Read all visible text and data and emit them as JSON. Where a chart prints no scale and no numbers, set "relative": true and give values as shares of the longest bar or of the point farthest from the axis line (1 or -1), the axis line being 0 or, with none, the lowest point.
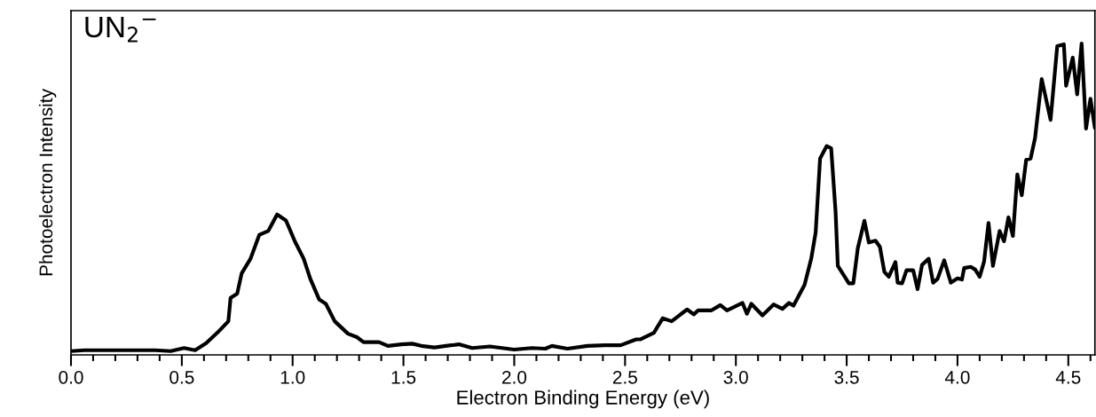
{
  "chart_data": {
    "type": "line",
    "title": "UN$_{2}$$^{−}$",
    "xlabel": "Electron Binding Energy (eV)",
    "ylabel": "Photoelectron Intensity",
    "relative": true,
    "tick_labels": "x",
    "grid": false,
    "marker": "none",
    "line_style": "solid",
    "xlim": [
      0,
      4.62
    ],
    "xticks": [
      {
        "value": 0,
        "label": "0.0"
      },
      {
        "value": 0.5,
        "label": "0.5"
      },
      {
        "value": 1,
        "label": "1.0"
      },
      {
        "value": 1.5,
        "label": "1.5"
      },
      {
        "value": 2,
        "label": "2.0"
      },
      {
        "value": 2.5,
        "label": "2.5"
      },
      {
        "value": 3,
        "label": "3.0"
      },
      {
        "value": 3.5,
        "label": "3.5"
      },
      {
        "value": 4,
        "label": "4.0"
      },
      {
        "value": 4.5,
        "label": "4.5"
      }
    ],
    "series": [
      {
        "color": "#000000",
        "x": [
          0.0,
          0.06,
          0.18,
          0.38,
          0.45,
          0.51,
          0.56,
          0.61,
          0.66,
          0.71,
          0.72,
          0.75,
          0.77,
          0.81,
          0.85,
          0.89,
          0.93,
          0.97,
          1.01,
          1.05,
          1.08,
          1.12,
          1.15,
          1.19,
          1.25,
          1.29,
          1.32,
          1.39,
          1.43,
          1.49,
          1.54,
          1.58,
          1.64,
          1.75,
          1.81,
          1.89,
          2.0,
          2.08,
          2.14,
          2.17,
          2.24,
          2.33,
          2.41,
          2.48,
          2.55,
          2.57,
          2.63,
          2.67,
          2.71,
          2.78,
          2.81,
          2.83,
          2.89,
          2.93,
          2.96,
          3.03,
          3.05,
          3.07,
          3.12,
          3.17,
          3.21,
          3.24,
          3.26,
          3.31,
          3.34,
          3.36,
          3.38,
          3.41,
          3.43,
          3.45,
          3.46,
          3.51,
          3.53,
          3.55,
          3.58,
          3.6,
          3.63,
          3.65,
          3.67,
          3.69,
          3.72,
          3.73,
          3.75,
          3.77,
          3.8,
          3.82,
          3.84,
          3.87,
          3.89,
          3.91,
          3.94,
          3.97,
          4.0,
          4.02,
          4.03,
          4.06,
          4.08,
          4.1,
          4.12,
          4.14,
          4.16,
          4.19,
          4.21,
          4.23,
          4.25,
          4.27,
          4.29,
          4.31,
          4.33,
          4.35,
          4.38,
          4.42,
          4.45,
          4.48,
          4.49,
          4.52,
          4.54,
          4.56,
          4.58,
          4.6,
          4.62
        ],
        "values": [
          0.012,
          0.015,
          0.015,
          0.015,
          0.012,
          0.022,
          0.015,
          0.038,
          0.071,
          0.108,
          0.183,
          0.197,
          0.262,
          0.309,
          0.386,
          0.398,
          0.451,
          0.432,
          0.365,
          0.309,
          0.244,
          0.178,
          0.164,
          0.108,
          0.068,
          0.057,
          0.041,
          0.041,
          0.029,
          0.034,
          0.036,
          0.029,
          0.024,
          0.034,
          0.022,
          0.027,
          0.017,
          0.022,
          0.02,
          0.029,
          0.02,
          0.029,
          0.031,
          0.031,
          0.05,
          0.05,
          0.071,
          0.118,
          0.108,
          0.146,
          0.13,
          0.143,
          0.143,
          0.16,
          0.143,
          0.167,
          0.132,
          0.164,
          0.127,
          0.162,
          0.148,
          0.167,
          0.158,
          0.225,
          0.309,
          0.393,
          0.631,
          0.671,
          0.664,
          0.459,
          0.286,
          0.23,
          0.23,
          0.342,
          0.431,
          0.361,
          0.367,
          0.347,
          0.267,
          0.251,
          0.298,
          0.232,
          0.23,
          0.272,
          0.272,
          0.211,
          0.289,
          0.309,
          0.232,
          0.244,
          0.304,
          0.232,
          0.246,
          0.242,
          0.279,
          0.283,
          0.274,
          0.251,
          0.3,
          0.424,
          0.286,
          0.398,
          0.365,
          0.442,
          0.382,
          0.58,
          0.513,
          0.627,
          0.631,
          0.697,
          0.886,
          0.755,
          0.992,
          0.998,
          0.865,
          0.955,
          0.837,
          1.0,
          0.727,
          0.823,
          0.729
        ]
      }
    ]
  }
}
